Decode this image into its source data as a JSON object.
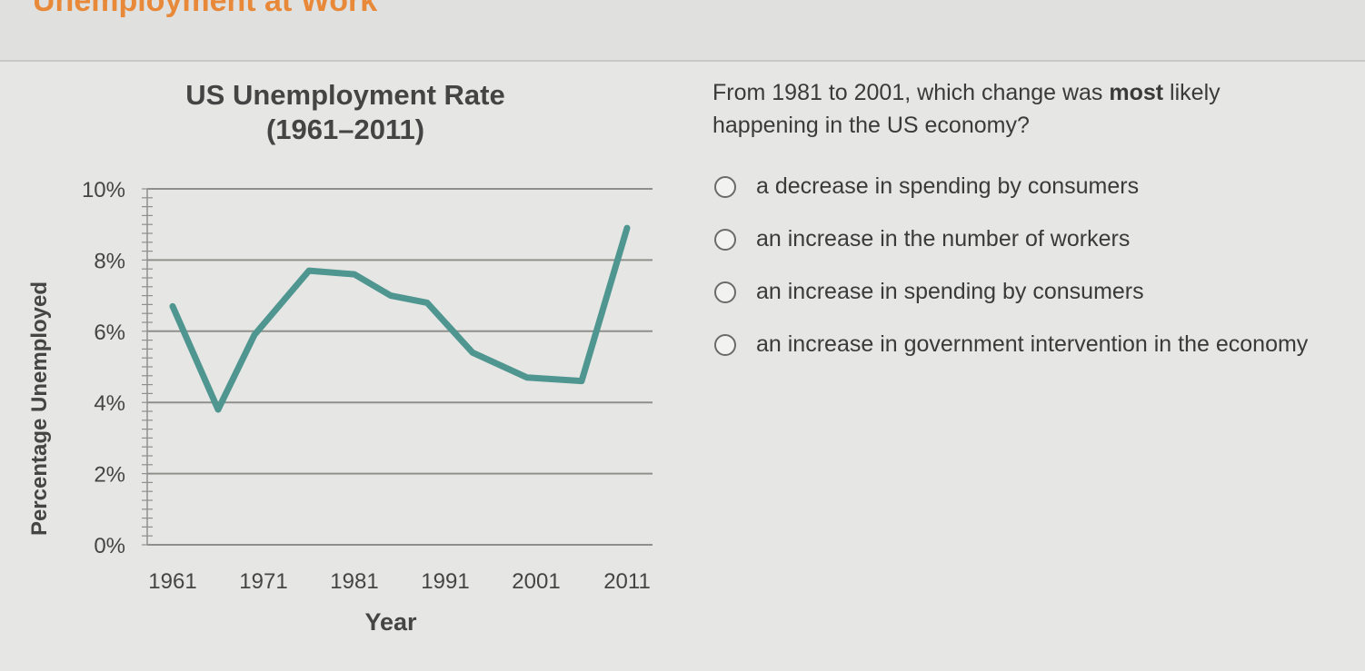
{
  "page": {
    "title": "Unemployment at Work"
  },
  "chart_data": {
    "type": "line",
    "title": "US Unemployment Rate",
    "subtitle": "(1961–2011)",
    "xlabel": "Year",
    "ylabel": "Percentage Unemployed",
    "x_ticks": [
      "1961",
      "1971",
      "1981",
      "1991",
      "2001",
      "2011"
    ],
    "y_ticks": [
      "0%",
      "2%",
      "4%",
      "6%",
      "8%",
      "10%"
    ],
    "xlim": [
      1961,
      2011
    ],
    "ylim": [
      0,
      10
    ],
    "grid": true,
    "color": "#4f9690",
    "series": [
      {
        "x": [
          1961,
          1966,
          1970,
          1976,
          1981,
          1985,
          1989,
          1994,
          2000,
          2006,
          2011
        ],
        "y": [
          6.7,
          3.8,
          5.9,
          7.7,
          7.6,
          7.0,
          6.8,
          5.4,
          4.7,
          4.6,
          8.9
        ]
      }
    ]
  },
  "question": {
    "text_before": "From 1981 to 2001, which change was ",
    "emphasis": "most",
    "text_after": " likely happening in the US economy?",
    "options": [
      "a decrease in spending by consumers",
      "an increase in the number of workers",
      "an increase in spending by consumers",
      "an increase in government intervention in the economy"
    ]
  }
}
